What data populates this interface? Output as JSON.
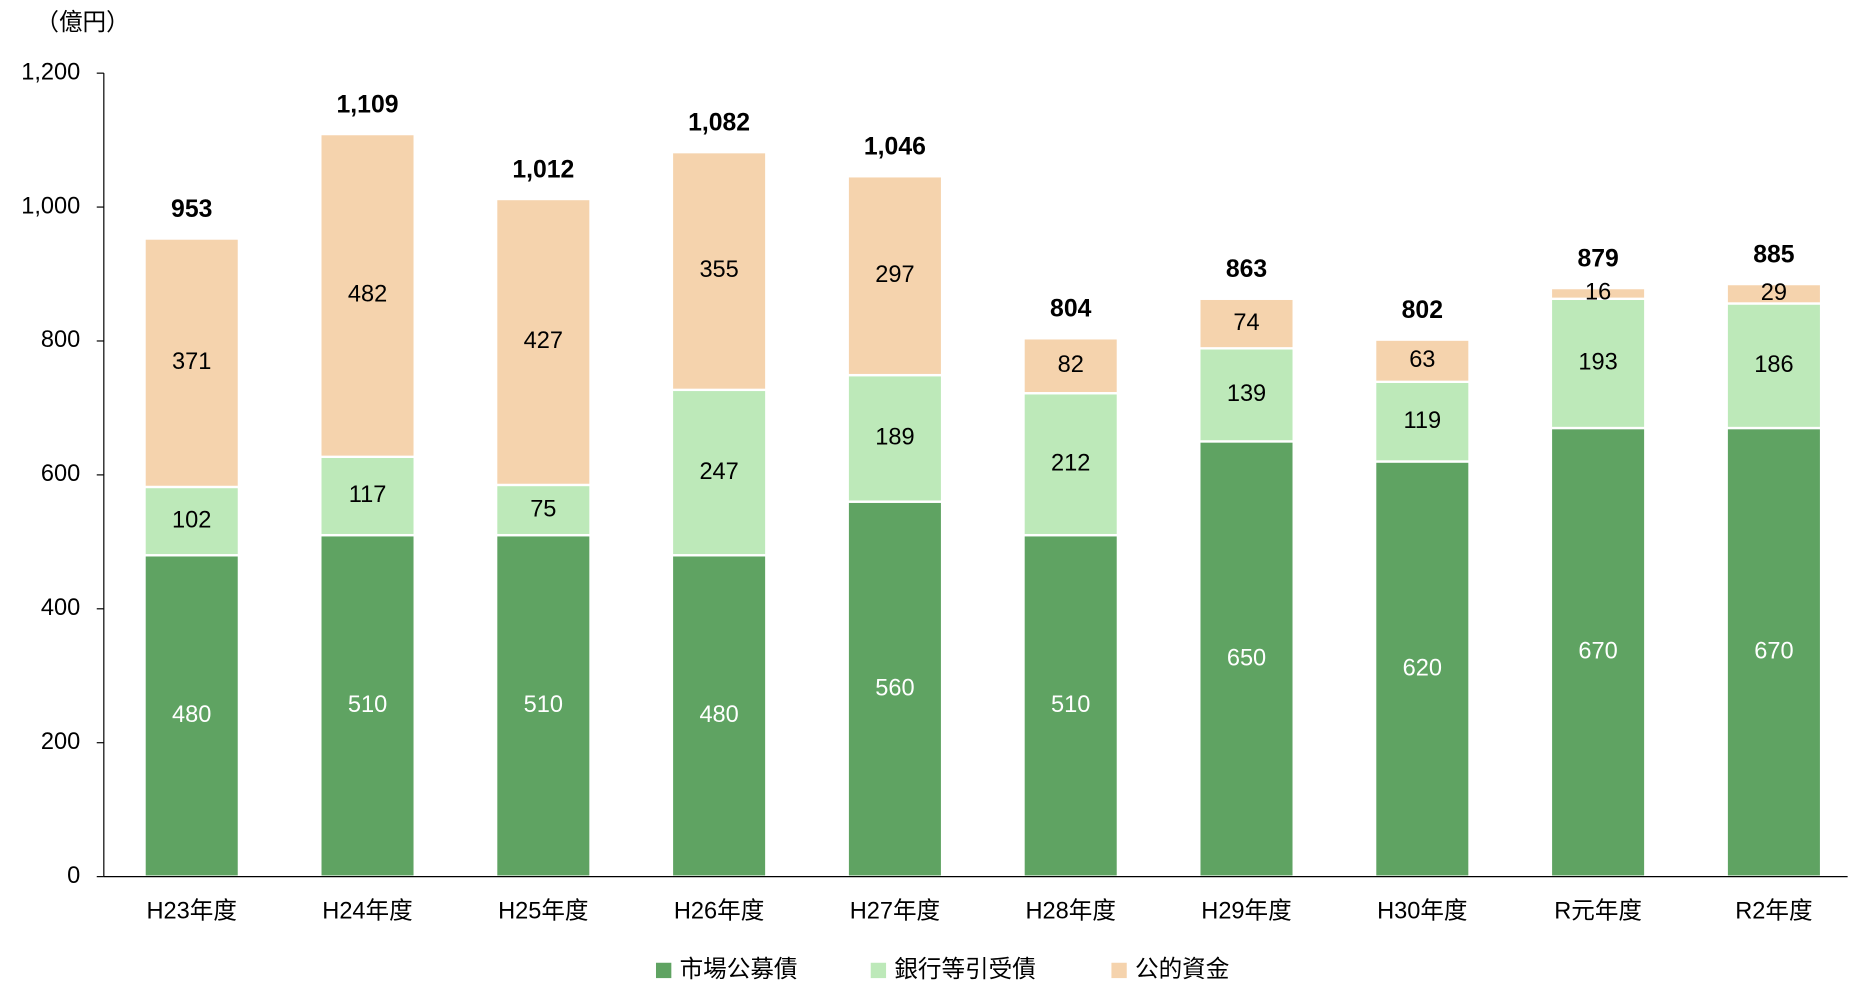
{
  "chart_data": {
    "type": "stacked_bar",
    "unit_label": "（億円）",
    "categories": [
      "H23年度",
      "H24年度",
      "H25年度",
      "H26年度",
      "H27年度",
      "H28年度",
      "H29年度",
      "H30年度",
      "R元年度",
      "R2年度"
    ],
    "series": [
      {
        "name": "市場公募債",
        "color": "#5fa362",
        "label_color": "#ffffff",
        "values": [
          480,
          510,
          510,
          480,
          560,
          510,
          650,
          620,
          670,
          670
        ]
      },
      {
        "name": "銀行等引受債",
        "color": "#bde9b9",
        "label_color": "#000000",
        "values": [
          102,
          117,
          75,
          247,
          189,
          212,
          139,
          119,
          193,
          186
        ]
      },
      {
        "name": "公的資金",
        "color": "#f5d3ad",
        "label_color": "#000000",
        "values": [
          371,
          482,
          427,
          355,
          297,
          82,
          74,
          63,
          16,
          29
        ]
      }
    ],
    "totals": [
      953,
      1109,
      1012,
      1082,
      1046,
      804,
      863,
      802,
      879,
      885
    ],
    "total_labels": [
      "953",
      "1,109",
      "1,012",
      "1,082",
      "1,046",
      "804",
      "863",
      "802",
      "879",
      "885"
    ],
    "ylim": [
      0,
      1200
    ],
    "yticks": [
      0,
      200,
      400,
      600,
      800,
      {
        "value": 1000,
        "label": "1,000"
      },
      {
        "value": 1200,
        "label": "1,200"
      }
    ],
    "grid": false,
    "legend": "bottom"
  }
}
